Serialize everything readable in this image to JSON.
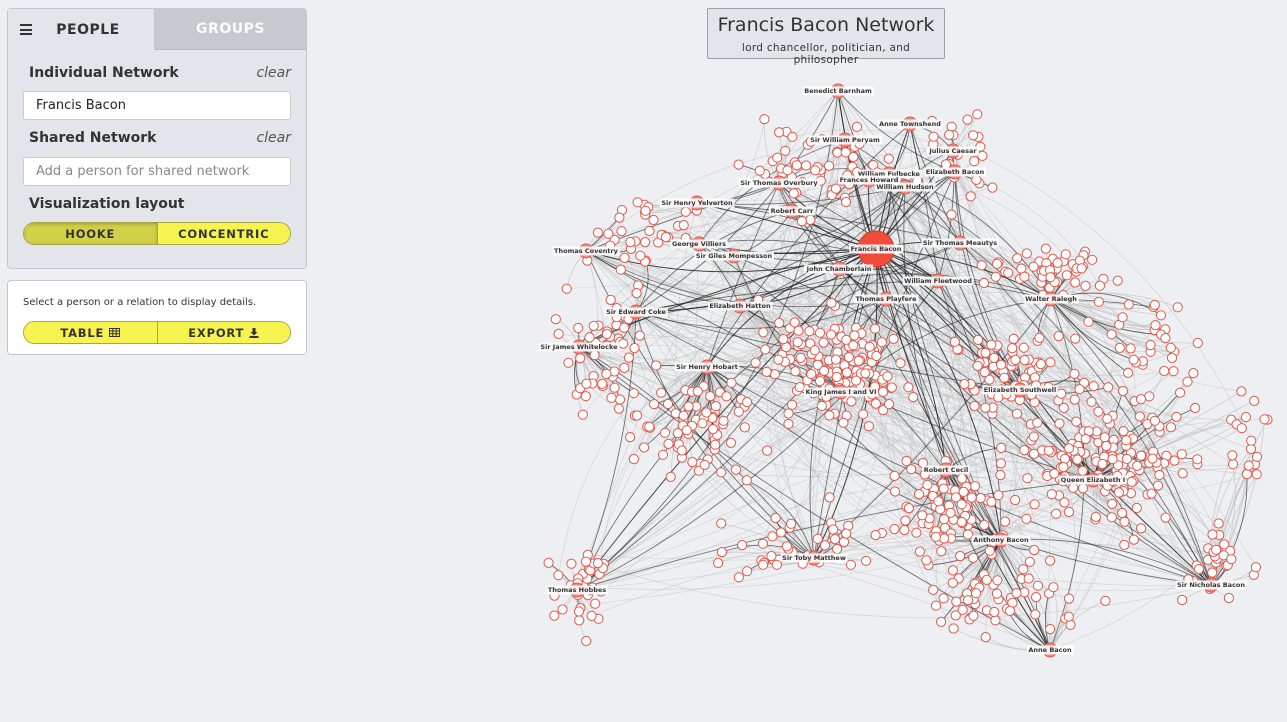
{
  "tabs": {
    "people": "PEOPLE",
    "groups": "GROUPS"
  },
  "individual_network": {
    "title": "Individual Network",
    "clear_label": "clear",
    "value": "Francis Bacon"
  },
  "shared_network": {
    "title": "Shared Network",
    "clear_label": "clear",
    "placeholder": "Add a person for shared network"
  },
  "layout": {
    "title": "Visualization layout",
    "options": [
      "HOOKE",
      "CONCENTRIC"
    ],
    "selected": "HOOKE"
  },
  "details": {
    "hint": "Select a person or a relation to display details.",
    "table_label": "TABLE",
    "export_label": "EXPORT"
  },
  "network": {
    "title": "Francis Bacon Network",
    "subtitle": "lord chancellor, politician, and philosopher",
    "focus": "Francis Bacon",
    "labeled_nodes": [
      "Benedict Barnham",
      "Anne Townshend",
      "Sir William Peryam",
      "Julius Caesar",
      "William Fulbecke",
      "Elizabeth Bacon",
      "Frances Howard",
      "William Hudson",
      "Sir Thomas Overbury",
      "Sir Henry Yelverton",
      "Robert Carr",
      "George Villiers",
      "Francis Bacon",
      "Sir Thomas Meautys",
      "Sir Giles Mompesson",
      "John Chamberlain",
      "Thomas Coventry",
      "William Fleetwood",
      "Thomas Playfere",
      "Walter Ralegh",
      "Elizabeth Hatton",
      "Sir Edward Coke",
      "Sir James Whitelocke",
      "Sir Henry Hobart",
      "Elizabeth Southwell",
      "King James I and VI",
      "Robert Cecil",
      "Queen Elizabeth I",
      "Anthony Bacon",
      "Sir Toby Matthew",
      "Thomas Hobbes",
      "Sir Nicholas Bacon",
      "Anne Bacon"
    ],
    "colors": {
      "node_fill": "#f5877c",
      "node_stroke": "#e0584c",
      "focus_fill": "#f04c3c",
      "edge_light": "#bfbfbf",
      "edge_dark": "#222222"
    }
  }
}
